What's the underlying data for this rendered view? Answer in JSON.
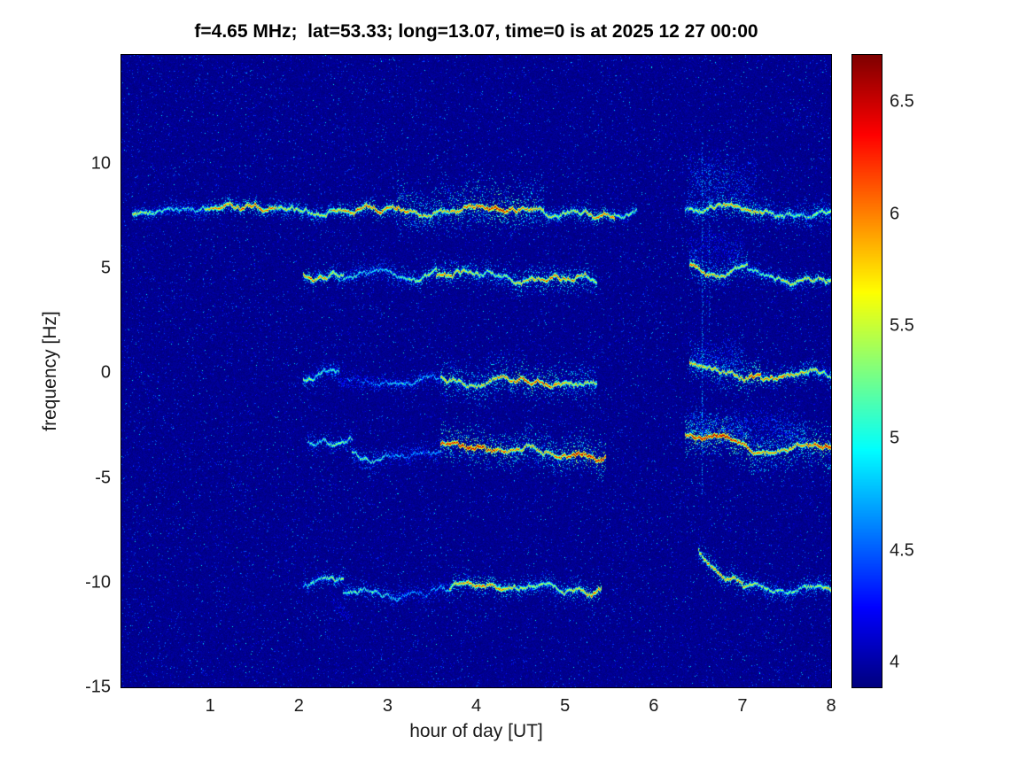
{
  "figure": {
    "background": "#ffffff",
    "accent_text_color": "#000000"
  },
  "chart_data": {
    "type": "heatmap",
    "subtype": "doppler-spectrogram",
    "title": "f=4.65 MHz;  lat=53.33; long=13.07, time=0 is at 2025 12 27 00:00",
    "xlabel": "hour of day [UT]",
    "ylabel": "frequency [Hz]",
    "xlim": [
      0,
      8
    ],
    "ylim": [
      -15,
      15.2
    ],
    "x_ticks": [
      1,
      2,
      3,
      4,
      5,
      6,
      7,
      8
    ],
    "y_ticks": [
      10,
      5,
      0,
      -5,
      -10,
      -15
    ],
    "grid": false,
    "colormap": "jet",
    "colorbar": {
      "position": "right",
      "range": [
        3.89,
        6.71
      ],
      "ticks": [
        4,
        4.5,
        5,
        5.5,
        6,
        6.5
      ]
    },
    "noise": {
      "base": 3.87,
      "jitter": 0.13,
      "speckle_prob": 0.035,
      "speckle_lo": 4.05,
      "speckle_hi": 4.55,
      "bright_prob": 0.004,
      "bright_lo": 4.45,
      "bright_hi": 5.0
    },
    "bands": [
      {
        "name": "doppler-7.8Hz-early",
        "t0": 0.12,
        "t1": 0.95,
        "f0": 7.75,
        "peak": 5.6,
        "spread": 0.35,
        "density": 0.35
      },
      {
        "name": "doppler-7.8Hz-main",
        "t0": 0.95,
        "t1": 3.1,
        "f0": 7.75,
        "f1": 7.8,
        "peak": 6.1,
        "spread": 0.4,
        "density": 0.5
      },
      {
        "name": "doppler-7.8Hz-strong",
        "t0": 3.1,
        "t1": 4.75,
        "f0": 7.8,
        "peak": 6.3,
        "spread": 0.9,
        "spread_up": 1.4,
        "density": 0.9
      },
      {
        "name": "doppler-7.8Hz-late",
        "t0": 4.75,
        "t1": 5.55,
        "f0": 7.7,
        "peak": 6.1,
        "spread": 0.45,
        "density": 0.5
      },
      {
        "name": "doppler-7.8Hz-fade",
        "t0": 5.55,
        "t1": 5.8,
        "f0": 7.7,
        "peak": 5.3,
        "spread": 0.3,
        "density": 0.3
      },
      {
        "name": "doppler-7.8Hz-evening",
        "t0": 6.35,
        "t1": 8.0,
        "f0": 7.95,
        "f1": 7.6,
        "peak": 5.9,
        "spread": 0.55,
        "density": 0.6
      },
      {
        "name": "doppler-7.8Hz-evening-cloud",
        "t0": 6.38,
        "t1": 7.15,
        "f0": 9.2,
        "peak": 5.0,
        "spread": 1.3,
        "density": 0.8,
        "core": false
      },
      {
        "name": "doppler-4.7Hz-onset",
        "t0": 2.05,
        "t1": 2.5,
        "f0": 4.75,
        "peak": 5.9,
        "spread": 0.4,
        "density": 0.5
      },
      {
        "name": "doppler-4.7Hz-mid",
        "t0": 2.5,
        "t1": 3.55,
        "f0": 4.6,
        "peak": 5.5,
        "spread": 0.5,
        "density": 0.5
      },
      {
        "name": "doppler-4.7Hz-strong",
        "t0": 3.55,
        "t1": 5.35,
        "f0": 4.7,
        "f1": 4.6,
        "peak": 6.0,
        "spread": 0.6,
        "density": 0.6
      },
      {
        "name": "doppler-4.7Hz-evening",
        "t0": 6.4,
        "t1": 7.05,
        "f_start": 5.3,
        "f1": 4.8,
        "tau": 0.3,
        "peak": 6.2,
        "spread": 0.6,
        "density": 0.6
      },
      {
        "name": "doppler-4.7Hz-evening-cloud",
        "t0": 6.4,
        "t1": 7.0,
        "f0": 5.9,
        "peak": 4.9,
        "spread": 0.8,
        "density": 0.6,
        "core": false
      },
      {
        "name": "doppler-4.7Hz-evening-tail",
        "t0": 7.05,
        "t1": 8.0,
        "f0": 4.8,
        "f1": 4.5,
        "peak": 5.7,
        "spread": 0.4,
        "density": 0.4
      },
      {
        "name": "doppler-0Hz-onset",
        "t0": 2.05,
        "t1": 2.45,
        "f0": -0.2,
        "peak": 5.6,
        "spread": 0.4,
        "density": 0.45
      },
      {
        "name": "doppler-0Hz-faint",
        "t0": 2.45,
        "t1": 3.6,
        "f0": -0.45,
        "peak": 4.9,
        "spread": 0.4,
        "density": 0.35
      },
      {
        "name": "doppler-0Hz-strong",
        "t0": 3.6,
        "t1": 5.35,
        "f0": -0.25,
        "f1": -0.35,
        "peak": 6.2,
        "spread": 0.8,
        "spread_up": 1.0,
        "density": 0.7
      },
      {
        "name": "doppler-0Hz-evening",
        "t0": 6.4,
        "t1": 7.2,
        "f_start": 0.5,
        "f1": -0.2,
        "tau": 0.3,
        "peak": 6.3,
        "spread": 0.8,
        "density": 0.7
      },
      {
        "name": "doppler-0Hz-evening-cloud",
        "t0": 6.4,
        "t1": 7.0,
        "f0": 0.9,
        "peak": 5.0,
        "spread": 0.9,
        "density": 0.6,
        "core": false
      },
      {
        "name": "doppler-0Hz-evening-tail",
        "t0": 7.2,
        "t1": 8.0,
        "f0": -0.2,
        "f1": -0.1,
        "peak": 6.0,
        "spread": 0.5,
        "density": 0.5
      },
      {
        "name": "doppler-minus3.5Hz-onset",
        "t0": 2.1,
        "t1": 2.6,
        "f0": -3.3,
        "peak": 5.3,
        "spread": 0.4,
        "density": 0.4
      },
      {
        "name": "doppler-minus3.5Hz-faint",
        "t0": 2.6,
        "t1": 3.6,
        "f0": -3.9,
        "peak": 5.2,
        "spread": 0.5,
        "density": 0.4
      },
      {
        "name": "doppler-minus3.5Hz-strong",
        "t0": 3.6,
        "t1": 5.45,
        "f0": -3.5,
        "f1": -4.0,
        "peak": 6.4,
        "spread": 0.8,
        "spread_up": 1.0,
        "density": 0.8
      },
      {
        "name": "doppler-minus3.5Hz-evening",
        "t0": 6.35,
        "t1": 8.0,
        "f_start": -2.9,
        "f1": -3.6,
        "tau": 0.25,
        "peak": 6.4,
        "spread": 1.0,
        "density": 0.9
      },
      {
        "name": "doppler-minus3.5Hz-evening-cloud",
        "t0": 6.4,
        "t1": 7.7,
        "f0": -2.5,
        "peak": 5.2,
        "spread": 0.9,
        "density": 0.7,
        "core": false
      },
      {
        "name": "doppler-minus10Hz-onset",
        "t0": 2.05,
        "t1": 2.5,
        "f0": -10.1,
        "peak": 5.5,
        "spread": 0.35,
        "density": 0.4
      },
      {
        "name": "doppler-minus10Hz-dip",
        "t0": 2.35,
        "t1": 2.6,
        "f_start": -10.6,
        "f1": -12.2,
        "tau": 0.5,
        "peak": 4.7,
        "spread": 0.3,
        "density": 0.3,
        "core": false
      },
      {
        "name": "doppler-minus10Hz-faint",
        "t0": 2.5,
        "t1": 3.7,
        "f0": -10.5,
        "peak": 5.2,
        "spread": 0.45,
        "density": 0.4
      },
      {
        "name": "doppler-minus10Hz-strong",
        "t0": 3.7,
        "t1": 5.4,
        "f0": -10.4,
        "f1": -10.3,
        "peak": 6.0,
        "spread": 0.5,
        "density": 0.5
      },
      {
        "name": "doppler-minus10Hz-hook",
        "t0": 6.5,
        "t1": 7.0,
        "f_start": -8.4,
        "f1": -10.2,
        "tau": 0.35,
        "peak": 5.9,
        "spread": 0.5,
        "density": 0.5
      },
      {
        "name": "doppler-minus10Hz-evening",
        "t0": 7.0,
        "t1": 8.0,
        "f0": -10.2,
        "f1": -10.4,
        "peak": 5.8,
        "spread": 0.5,
        "density": 0.5
      }
    ],
    "vertical_streaks": [
      {
        "t": 6.54,
        "f_top": 11.0,
        "f_bottom": -6.0,
        "value": 4.35,
        "density": 0.5
      },
      {
        "t": 6.62,
        "f_top": 10.0,
        "f_bottom": 2.0,
        "value": 4.3,
        "density": 0.4
      }
    ]
  }
}
